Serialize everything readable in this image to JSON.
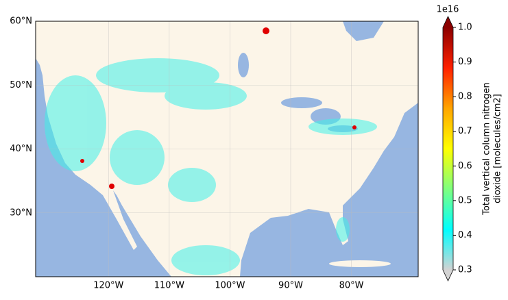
{
  "chart_data": {
    "type": "map",
    "xlim": [
      -132,
      -69
    ],
    "ylim": [
      20,
      60
    ],
    "xticks": [
      {
        "value": -120,
        "label": "120°W"
      },
      {
        "value": -110,
        "label": "110°W"
      },
      {
        "value": -100,
        "label": "100°W"
      },
      {
        "value": -90,
        "label": "90°W"
      },
      {
        "value": -80,
        "label": "80°W"
      }
    ],
    "yticks": [
      {
        "value": 30,
        "label": "30°N"
      },
      {
        "value": 40,
        "label": "40°N"
      },
      {
        "value": 50,
        "label": "50°N"
      },
      {
        "value": 60,
        "label": "60°N"
      }
    ],
    "grid": true,
    "colorbar": {
      "label_lines": [
        "Total vertical column nitrogen",
        "dioxide [molecules/cm2]"
      ],
      "offset_label": "1e16",
      "clim": [
        0.3,
        1.0
      ],
      "ticks": [
        0.3,
        0.4,
        0.5,
        0.6,
        0.7,
        0.8,
        0.9,
        {
          "value": 1.0,
          "label": "1.0"
        }
      ],
      "colors": [
        "#d3d3d3",
        "#00ffff",
        "#7fff7f",
        "#ffff00",
        "#ffa500",
        "#ff2000",
        "#8b0000"
      ]
    }
  }
}
